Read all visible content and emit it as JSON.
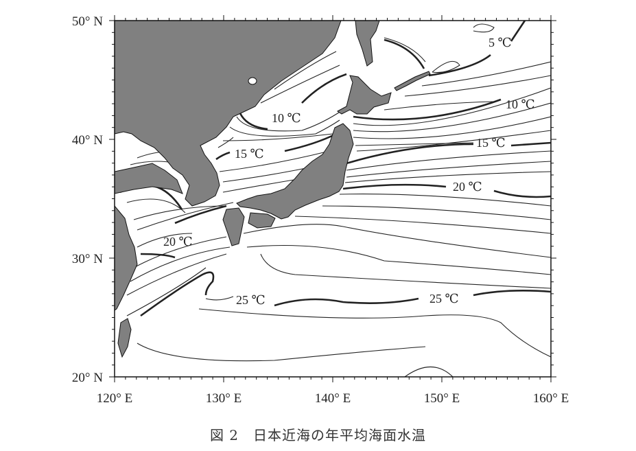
{
  "figure": {
    "caption": "図 2　日本近海の年平均海面水温"
  },
  "map": {
    "extent": {
      "lon": [
        120,
        160
      ],
      "lat": [
        20,
        50
      ]
    },
    "colors": {
      "land": "#808080",
      "sea": "#ffffff",
      "isotherm": "#222222"
    },
    "y_ticks": [
      "50° N",
      "40° N",
      "30° N",
      "20° N"
    ],
    "x_ticks": [
      "120° E",
      "130° E",
      "140° E",
      "150° E",
      "160° E"
    ],
    "isotherm_labels": {
      "t5": "5 ℃",
      "t10_sea_of_japan": "10 ℃",
      "t10_pacific": "10 ℃",
      "t15_sea_of_japan": "15 ℃",
      "t15_pacific": "15 ℃",
      "t20_pacific": "20 ℃",
      "t20_east_china_sea": "20 ℃",
      "t25_west": "25 ℃",
      "t25_east": "25 ℃"
    }
  }
}
